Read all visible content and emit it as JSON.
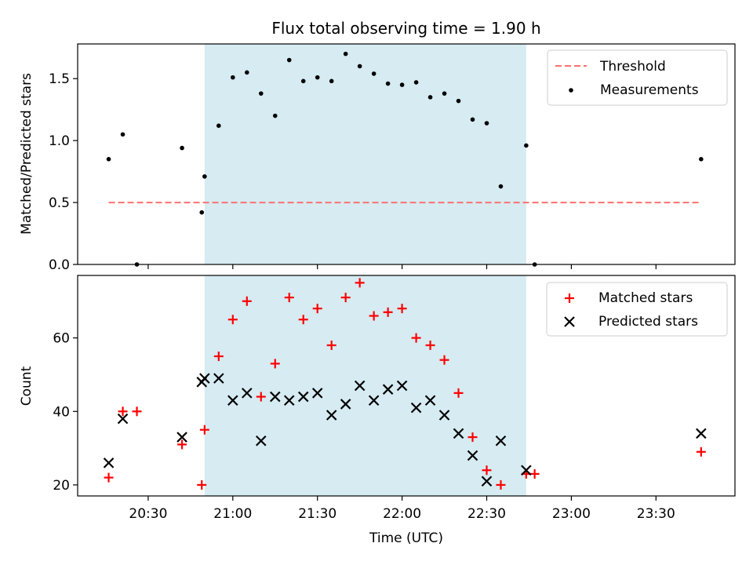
{
  "figure": {
    "title": "Flux total observing time = 1.90 h",
    "xlabel": "Time (UTC)",
    "x_ticks": [
      "20:30",
      "21:00",
      "21:30",
      "22:00",
      "22:30",
      "23:00",
      "23:30"
    ],
    "x_range": [
      "20:05",
      "23:58"
    ],
    "shaded_span": {
      "start": "20:50",
      "end": "22:44",
      "color": "#add8e6"
    }
  },
  "chart_data": [
    {
      "type": "scatter",
      "panel": "top",
      "ylabel": "Matched/Predicted stars",
      "ylim": [
        0,
        1.78
      ],
      "yticks": [
        "0.0",
        "0.5",
        "1.0",
        "1.5"
      ],
      "legend_position": "top-right",
      "threshold": {
        "name": "Threshold",
        "value": 0.5,
        "x_start": "20:16",
        "x_end": "23:46",
        "color": "#ff7070"
      },
      "series": [
        {
          "name": "Measurements",
          "color": "#000000",
          "points": [
            [
              "20:16",
              0.85
            ],
            [
              "20:21",
              1.05
            ],
            [
              "20:26",
              0.0
            ],
            [
              "20:42",
              0.94
            ],
            [
              "20:49",
              0.42
            ],
            [
              "20:50",
              0.71
            ],
            [
              "20:55",
              1.12
            ],
            [
              "21:00",
              1.51
            ],
            [
              "21:05",
              1.55
            ],
            [
              "21:10",
              1.38
            ],
            [
              "21:15",
              1.2
            ],
            [
              "21:20",
              1.65
            ],
            [
              "21:25",
              1.48
            ],
            [
              "21:30",
              1.51
            ],
            [
              "21:35",
              1.48
            ],
            [
              "21:40",
              1.7
            ],
            [
              "21:45",
              1.6
            ],
            [
              "21:50",
              1.54
            ],
            [
              "21:55",
              1.46
            ],
            [
              "22:00",
              1.45
            ],
            [
              "22:05",
              1.47
            ],
            [
              "22:10",
              1.35
            ],
            [
              "22:15",
              1.38
            ],
            [
              "22:20",
              1.32
            ],
            [
              "22:25",
              1.17
            ],
            [
              "22:30",
              1.14
            ],
            [
              "22:35",
              0.63
            ],
            [
              "22:44",
              0.96
            ],
            [
              "22:47",
              0.0
            ],
            [
              "23:46",
              0.85
            ]
          ]
        }
      ]
    },
    {
      "type": "scatter",
      "panel": "bottom",
      "ylabel": "Count",
      "ylim": [
        17,
        77
      ],
      "yticks": [
        "20",
        "40",
        "60"
      ],
      "legend_position": "top-right",
      "series": [
        {
          "name": "Matched stars",
          "marker": "+",
          "color": "#ff0000",
          "points": [
            [
              "20:16",
              22
            ],
            [
              "20:21",
              40
            ],
            [
              "20:26",
              40
            ],
            [
              "20:42",
              31
            ],
            [
              "20:49",
              20
            ],
            [
              "20:50",
              35
            ],
            [
              "20:55",
              55
            ],
            [
              "21:00",
              65
            ],
            [
              "21:05",
              70
            ],
            [
              "21:10",
              44
            ],
            [
              "21:15",
              53
            ],
            [
              "21:20",
              71
            ],
            [
              "21:25",
              65
            ],
            [
              "21:30",
              68
            ],
            [
              "21:35",
              58
            ],
            [
              "21:40",
              71
            ],
            [
              "21:45",
              75
            ],
            [
              "21:50",
              66
            ],
            [
              "21:55",
              67
            ],
            [
              "22:00",
              68
            ],
            [
              "22:05",
              60
            ],
            [
              "22:10",
              58
            ],
            [
              "22:15",
              54
            ],
            [
              "22:20",
              45
            ],
            [
              "22:25",
              33
            ],
            [
              "22:30",
              24
            ],
            [
              "22:35",
              20
            ],
            [
              "22:44",
              23
            ],
            [
              "22:47",
              23
            ],
            [
              "23:46",
              29
            ]
          ]
        },
        {
          "name": "Predicted stars",
          "marker": "x",
          "color": "#000000",
          "points": [
            [
              "20:16",
              26
            ],
            [
              "20:21",
              38
            ],
            [
              "20:42",
              33
            ],
            [
              "20:49",
              48
            ],
            [
              "20:50",
              49
            ],
            [
              "20:55",
              49
            ],
            [
              "21:00",
              43
            ],
            [
              "21:05",
              45
            ],
            [
              "21:10",
              32
            ],
            [
              "21:15",
              44
            ],
            [
              "21:20",
              43
            ],
            [
              "21:25",
              44
            ],
            [
              "21:30",
              45
            ],
            [
              "21:35",
              39
            ],
            [
              "21:40",
              42
            ],
            [
              "21:45",
              47
            ],
            [
              "21:50",
              43
            ],
            [
              "21:55",
              46
            ],
            [
              "22:00",
              47
            ],
            [
              "22:05",
              41
            ],
            [
              "22:10",
              43
            ],
            [
              "22:15",
              39
            ],
            [
              "22:20",
              34
            ],
            [
              "22:25",
              28
            ],
            [
              "22:30",
              21
            ],
            [
              "22:35",
              32
            ],
            [
              "22:44",
              24
            ],
            [
              "23:46",
              34
            ]
          ]
        }
      ]
    }
  ]
}
